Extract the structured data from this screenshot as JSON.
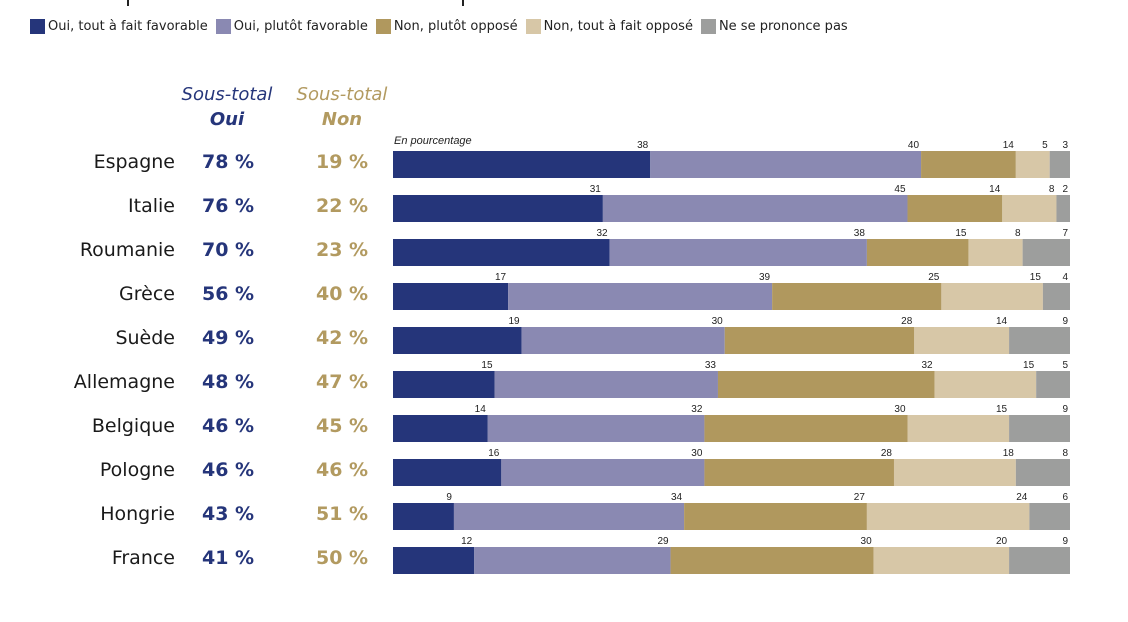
{
  "legend": [
    {
      "label": "Oui, tout à fait favorable",
      "color": "#25357a"
    },
    {
      "label": "Oui, plutôt favorable",
      "color": "#8a89b2"
    },
    {
      "label": "Non, plutôt opposé",
      "color": "#b0985e"
    },
    {
      "label": "Non, tout à fait opposé",
      "color": "#d7c7a7"
    },
    {
      "label": "Ne se prononce pas",
      "color": "#9d9e9d"
    }
  ],
  "headers": {
    "oui_line1": "Sous-total",
    "oui_line2": "Oui",
    "non_line1": "Sous-total",
    "non_line2": "Non"
  },
  "unit_note": "En pourcentage",
  "rows": [
    {
      "country": "Espagne",
      "oui_total": "78 %",
      "non_total": "19 %"
    },
    {
      "country": "Italie",
      "oui_total": "76 %",
      "non_total": "22 %"
    },
    {
      "country": "Roumanie",
      "oui_total": "70 %",
      "non_total": "23 %"
    },
    {
      "country": "Grèce",
      "oui_total": "56 %",
      "non_total": "40 %"
    },
    {
      "country": "Suède",
      "oui_total": "49 %",
      "non_total": "42 %"
    },
    {
      "country": "Allemagne",
      "oui_total": "48 %",
      "non_total": "47 %"
    },
    {
      "country": "Belgique",
      "oui_total": "46 %",
      "non_total": "45 %"
    },
    {
      "country": "Pologne",
      "oui_total": "46 %",
      "non_total": "46 %"
    },
    {
      "country": "Hongrie",
      "oui_total": "43 %",
      "non_total": "51 %"
    },
    {
      "country": "France",
      "oui_total": "41 %",
      "non_total": "50 %"
    }
  ],
  "chart_data": {
    "type": "bar",
    "orientation": "horizontal",
    "stacked": true,
    "title": "",
    "subtitle": "En pourcentage",
    "xlabel": "",
    "ylabel": "",
    "xlim": [
      0,
      100
    ],
    "grid": false,
    "legend_position": "top-left",
    "categories": [
      "Espagne",
      "Italie",
      "Roumanie",
      "Grèce",
      "Suède",
      "Allemagne",
      "Belgique",
      "Pologne",
      "Hongrie",
      "France"
    ],
    "series": [
      {
        "name": "Oui, tout à fait favorable",
        "color": "#25357a",
        "values": [
          38,
          31,
          32,
          17,
          19,
          15,
          14,
          16,
          9,
          12
        ]
      },
      {
        "name": "Oui, plutôt favorable",
        "color": "#8a89b2",
        "values": [
          40,
          45,
          38,
          39,
          30,
          33,
          32,
          30,
          34,
          29
        ]
      },
      {
        "name": "Non, plutôt opposé",
        "color": "#b0985e",
        "values": [
          14,
          14,
          15,
          25,
          28,
          32,
          30,
          28,
          27,
          30
        ]
      },
      {
        "name": "Non, tout à fait opposé",
        "color": "#d7c7a7",
        "values": [
          5,
          8,
          8,
          15,
          14,
          15,
          15,
          18,
          24,
          20
        ]
      },
      {
        "name": "Ne se prononce pas",
        "color": "#9d9e9d",
        "values": [
          3,
          2,
          7,
          4,
          9,
          5,
          9,
          8,
          6,
          9
        ]
      }
    ],
    "subtotals": {
      "Oui": [
        78,
        76,
        70,
        56,
        49,
        48,
        46,
        46,
        43,
        41
      ],
      "Non": [
        19,
        22,
        23,
        40,
        42,
        47,
        45,
        46,
        51,
        50
      ]
    }
  }
}
